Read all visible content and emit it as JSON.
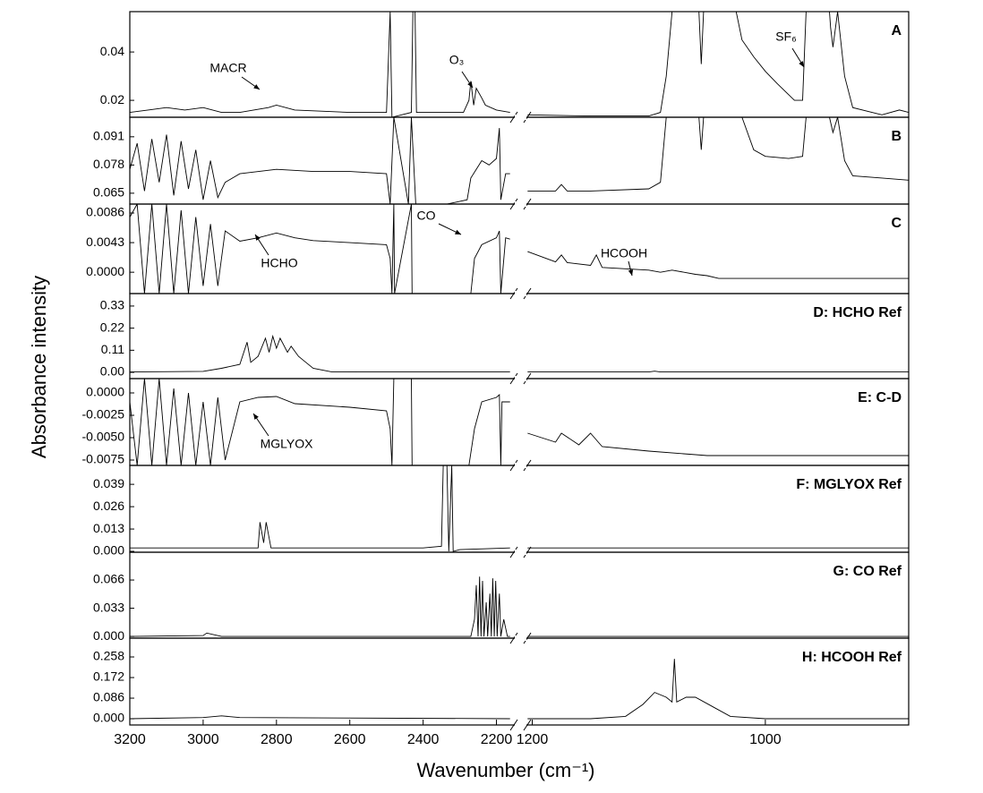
{
  "y_label": "Absorbance intensity",
  "x_axis": {
    "label": "Wavenumber (cm⁻¹)",
    "segments": [
      {
        "xlim": [
          3200,
          2150
        ],
        "xticks": [
          3200,
          3000,
          2800,
          2600,
          2400,
          2200
        ]
      },
      {
        "xlim": [
          1205,
          877
        ],
        "xticks": [
          1200,
          1000
        ]
      }
    ]
  },
  "chart_data": [
    {
      "type": "line",
      "label": "A",
      "color": "#000000",
      "annotations": [
        "MACR",
        "O₃",
        "SF₆"
      ],
      "ylim": [
        0.013,
        0.0567
      ],
      "yticks": [
        0.02,
        0.04
      ],
      "x": [
        3200,
        3150,
        3100,
        3050,
        3000,
        2950,
        2900,
        2822,
        2800,
        2750,
        2600,
        2500,
        2490,
        2485,
        2432,
        2428,
        2422,
        2418,
        2334,
        2290,
        2275,
        2270,
        2262,
        2255,
        2240,
        2230,
        2200,
        2163,
        1204,
        1150,
        1100,
        1090,
        1085,
        1080,
        1057,
        1055,
        1053,
        1025,
        1020,
        1010,
        1000,
        990,
        975,
        968,
        965,
        945,
        944,
        942,
        938,
        932,
        925,
        900,
        885,
        877
      ],
      "values": [
        0.015,
        0.016,
        0.017,
        0.016,
        0.017,
        0.015,
        0.015,
        0.017,
        0.018,
        0.016,
        0.015,
        0.015,
        0.0567,
        0.013,
        0.015,
        0.0567,
        0.0567,
        0.015,
        0.015,
        0.015,
        0.02,
        0.028,
        0.018,
        0.025,
        0.021,
        0.018,
        0.016,
        0.015,
        0.014,
        0.0135,
        0.0135,
        0.015,
        0.03,
        0.0567,
        0.0567,
        0.035,
        0.0567,
        0.0567,
        0.045,
        0.038,
        0.032,
        0.027,
        0.02,
        0.02,
        0.0567,
        0.0567,
        0.05,
        0.042,
        0.0567,
        0.03,
        0.017,
        0.014,
        0.016,
        0.015
      ]
    },
    {
      "type": "line",
      "label": "B",
      "color": "#000000",
      "annotations": [],
      "ylim": [
        0.06,
        0.1
      ],
      "yticks": [
        0.065,
        0.078,
        0.091
      ],
      "x": [
        3200,
        3180,
        3160,
        3140,
        3120,
        3100,
        3080,
        3060,
        3040,
        3020,
        3000,
        2980,
        2960,
        2940,
        2900,
        2800,
        2700,
        2600,
        2500,
        2490,
        2480,
        2440,
        2432,
        2420,
        2334,
        2280,
        2270,
        2240,
        2220,
        2200,
        2192,
        2188,
        2175,
        2163,
        1204,
        1180,
        1175,
        1170,
        1150,
        1100,
        1090,
        1085,
        1057,
        1055,
        1053,
        1020,
        1010,
        1000,
        980,
        968,
        965,
        945,
        942,
        938,
        932,
        925,
        900,
        877
      ],
      "values": [
        0.076,
        0.088,
        0.066,
        0.09,
        0.07,
        0.092,
        0.064,
        0.089,
        0.067,
        0.085,
        0.062,
        0.08,
        0.063,
        0.07,
        0.074,
        0.076,
        0.075,
        0.075,
        0.074,
        0.06,
        0.1,
        0.06,
        0.1,
        0.06,
        0.06,
        0.062,
        0.072,
        0.08,
        0.078,
        0.081,
        0.095,
        0.062,
        0.074,
        0.074,
        0.066,
        0.066,
        0.069,
        0.066,
        0.066,
        0.067,
        0.07,
        0.1,
        0.1,
        0.085,
        0.1,
        0.1,
        0.085,
        0.082,
        0.081,
        0.082,
        0.1,
        0.1,
        0.093,
        0.1,
        0.08,
        0.073,
        0.072,
        0.071
      ]
    },
    {
      "type": "line",
      "label": "C",
      "color": "#000000",
      "annotations": [
        "CO",
        "HCHO",
        "HCOOH"
      ],
      "ylim": [
        -0.0031,
        0.0099
      ],
      "yticks": [
        {
          "value": 0,
          "label": "0.0000"
        },
        0.0043,
        0.0086
      ],
      "x": [
        3200,
        3180,
        3160,
        3140,
        3120,
        3100,
        3080,
        3060,
        3040,
        3020,
        3000,
        2980,
        2960,
        2940,
        2900,
        2850,
        2800,
        2750,
        2700,
        2600,
        2500,
        2490,
        2485,
        2480,
        2478,
        2432,
        2430,
        2334,
        2270,
        2260,
        2240,
        2200,
        2192,
        2188,
        2175,
        2163,
        1204,
        1180,
        1175,
        1170,
        1150,
        1145,
        1140,
        1100,
        1090,
        1080,
        1060,
        1050,
        1040,
        1000,
        877
      ],
      "values": [
        0.008,
        0.0099,
        -0.0031,
        0.0099,
        -0.0031,
        0.0099,
        -0.0031,
        0.009,
        -0.0031,
        0.008,
        -0.002,
        0.007,
        -0.002,
        0.006,
        0.0045,
        0.005,
        0.0057,
        0.005,
        0.0046,
        0.0043,
        0.004,
        0.002,
        -0.0031,
        0.0099,
        -0.0031,
        0.0099,
        -0.0031,
        -0.0031,
        -0.0031,
        0.002,
        0.004,
        0.005,
        0.006,
        -0.0031,
        0.005,
        0.0048,
        0.003,
        0.0015,
        0.0025,
        0.0014,
        0.001,
        0.0025,
        0.0007,
        0.0003,
        0,
        0.0003,
        -0.0003,
        -0.0005,
        -0.0009,
        -0.0009,
        -0.0009
      ]
    },
    {
      "type": "line",
      "label": "D: HCHO Ref",
      "color": "#000000",
      "annotations": [],
      "ylim": [
        -0.031,
        0.392
      ],
      "yticks": [
        {
          "value": 0,
          "label": "0.00"
        },
        0.11,
        0.22,
        0.33
      ],
      "x": [
        3200,
        3000,
        2950,
        2900,
        2880,
        2870,
        2850,
        2830,
        2820,
        2810,
        2800,
        2790,
        2770,
        2760,
        2740,
        2720,
        2700,
        2650,
        2163,
        1204,
        1100,
        1095,
        1090,
        877
      ],
      "values": [
        0.002,
        0.005,
        0.02,
        0.04,
        0.15,
        0.05,
        0.08,
        0.17,
        0.1,
        0.18,
        0.12,
        0.17,
        0.1,
        0.13,
        0.08,
        0.05,
        0.02,
        0.003,
        0.002,
        0.002,
        0.002,
        0.006,
        0.002,
        0.002
      ]
    },
    {
      "type": "line",
      "label": "E: C-D",
      "color": "#000000",
      "annotations": [
        "MGLYOX"
      ],
      "ylim": [
        -0.0081,
        0.0016
      ],
      "yticks": [
        {
          "value": 0,
          "label": "0.0000"
        },
        -0.0025,
        {
          "value": -0.005,
          "label": "-0.0050"
        },
        -0.0075
      ],
      "x": [
        3200,
        3180,
        3160,
        3140,
        3120,
        3100,
        3080,
        3060,
        3040,
        3020,
        3000,
        2980,
        2960,
        2940,
        2900,
        2850,
        2800,
        2750,
        2600,
        2500,
        2490,
        2485,
        2480,
        2432,
        2430,
        2334,
        2275,
        2260,
        2240,
        2200,
        2192,
        2188,
        2185,
        2163,
        1204,
        1180,
        1175,
        1160,
        1150,
        1140,
        1100,
        1050,
        877
      ],
      "values": [
        -0.001,
        -0.0081,
        0.0016,
        -0.0081,
        0.0016,
        -0.0081,
        0.0005,
        -0.0081,
        0,
        -0.0081,
        -0.001,
        -0.0081,
        -0.0005,
        -0.0075,
        -0.001,
        -0.0005,
        -0.0004,
        -0.0012,
        -0.0016,
        -0.002,
        -0.004,
        -0.0081,
        0.0016,
        0.0016,
        -0.0081,
        -0.0081,
        -0.0081,
        -0.004,
        -0.001,
        -0.0005,
        -0.0002,
        -0.0081,
        -0.001,
        -0.001,
        -0.0045,
        -0.0055,
        -0.0045,
        -0.0058,
        -0.0045,
        -0.006,
        -0.0065,
        -0.007,
        -0.007
      ]
    },
    {
      "type": "line",
      "label": "F: MGLYOX Ref",
      "color": "#000000",
      "annotations": [],
      "ylim": [
        -0.0005,
        0.05
      ],
      "yticks": [
        {
          "value": 0,
          "label": "0.000"
        },
        0.013,
        0.026,
        0.039
      ],
      "x": [
        3200,
        2850,
        2845,
        2835,
        2828,
        2815,
        2400,
        2350,
        2345,
        2335,
        2330,
        2322,
        2318,
        2300,
        2163,
        1204,
        877
      ],
      "values": [
        0.002,
        0.002,
        0.017,
        0.005,
        0.017,
        0.002,
        0.002,
        0.003,
        0.05,
        0.05,
        0,
        0.05,
        0,
        0.001,
        0.002,
        0.002,
        0.002
      ]
    },
    {
      "type": "line",
      "label": "G: CO Ref",
      "color": "#000000",
      "annotations": [],
      "ylim": [
        -0.002,
        0.0985
      ],
      "yticks": [
        {
          "value": 0,
          "label": "0.000"
        },
        0.033,
        0.066
      ],
      "x": [
        3200,
        3000,
        2990,
        2950,
        2270,
        2260,
        2255,
        2250,
        2246,
        2242,
        2238,
        2234,
        2228,
        2224,
        2218,
        2214,
        2210,
        2206,
        2202,
        2198,
        2192,
        2188,
        2180,
        2170,
        2163,
        1204,
        877
      ],
      "values": [
        0,
        0.001,
        0.004,
        0,
        0,
        0.02,
        0.06,
        0,
        0.07,
        0,
        0.065,
        0,
        0.04,
        0,
        0.05,
        0,
        0.068,
        0,
        0.065,
        0,
        0.05,
        0,
        0.02,
        0,
        0,
        0,
        0
      ]
    },
    {
      "type": "line",
      "label": "H: HCOOH Ref",
      "color": "#000000",
      "annotations": [],
      "ylim": [
        -0.026,
        0.3365
      ],
      "yticks": [
        {
          "value": 0,
          "label": "0.000"
        },
        0.086,
        0.172,
        0.258
      ],
      "x": [
        3200,
        3000,
        2950,
        2900,
        2163,
        1204,
        1150,
        1120,
        1105,
        1095,
        1085,
        1080,
        1078,
        1076,
        1068,
        1060,
        1045,
        1030,
        1000,
        877
      ],
      "values": [
        0,
        0.005,
        0.012,
        0.005,
        0,
        0,
        0,
        0.01,
        0.06,
        0.11,
        0.09,
        0.07,
        0.25,
        0.07,
        0.09,
        0.09,
        0.05,
        0.01,
        0,
        0
      ]
    }
  ]
}
